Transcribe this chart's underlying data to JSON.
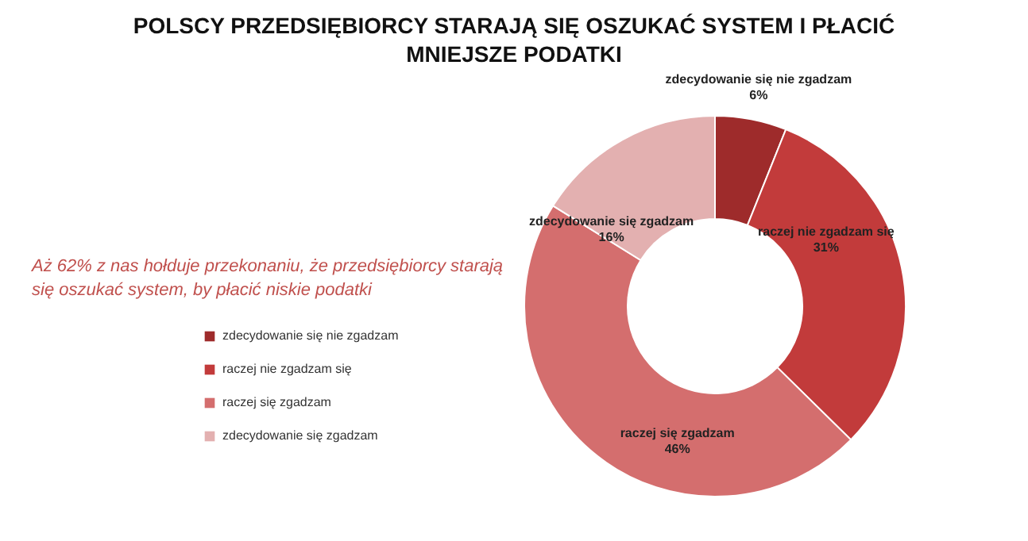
{
  "chart_data": {
    "type": "donut",
    "title": "POLSCY PRZEDSIĘBIORCY STARAJĄ SIĘ OSZUKAĆ SYSTEM I PŁACIĆ MNIEJSZE PODATKI",
    "categories": [
      "zdecydowanie się nie zgadzam",
      "raczej nie zgadzam się",
      "raczej się zgadzam",
      "zdecydowanie się zgadzam"
    ],
    "values": [
      6,
      31,
      46,
      16
    ],
    "value_labels": [
      "6%",
      "31%",
      "46%",
      "16%"
    ],
    "colors": [
      "#9e2b2b",
      "#c23b3b",
      "#d46e6e",
      "#e3b0b0"
    ],
    "annotations": [
      "Aż 62% z nas hołduje przekonaniu, że przedsiębiorcy starają się oszukać system, by płacić niskie podatki"
    ],
    "legend": "bottom left"
  }
}
